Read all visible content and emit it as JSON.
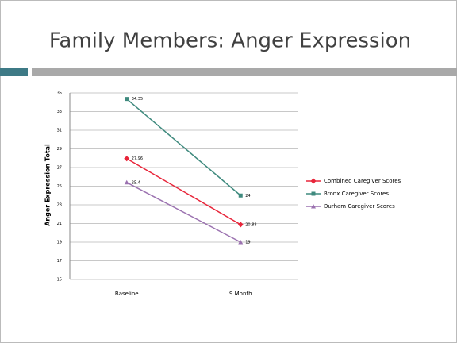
{
  "chart_data": {
    "type": "line",
    "title": "Family Members: Anger Expression",
    "y_label": "Anger Expression Total",
    "categories": [
      "Baseline",
      "9 Month"
    ],
    "series": [
      {
        "name": "Combined Caregiver Scores",
        "color": "#e8253a",
        "values": [
          27.96,
          20.88
        ]
      },
      {
        "name": "Bronx Caregiver Scores",
        "color": "#3f8a7e",
        "values": [
          34.35,
          24
        ]
      },
      {
        "name": "Durham Caregiver Scores",
        "color": "#9b72b0",
        "values": [
          25.4,
          19
        ]
      }
    ],
    "ylim": [
      15,
      35
    ],
    "yticks": [
      15,
      17,
      19,
      21,
      23,
      25,
      27,
      29,
      31,
      33,
      35
    ],
    "grid": true
  }
}
